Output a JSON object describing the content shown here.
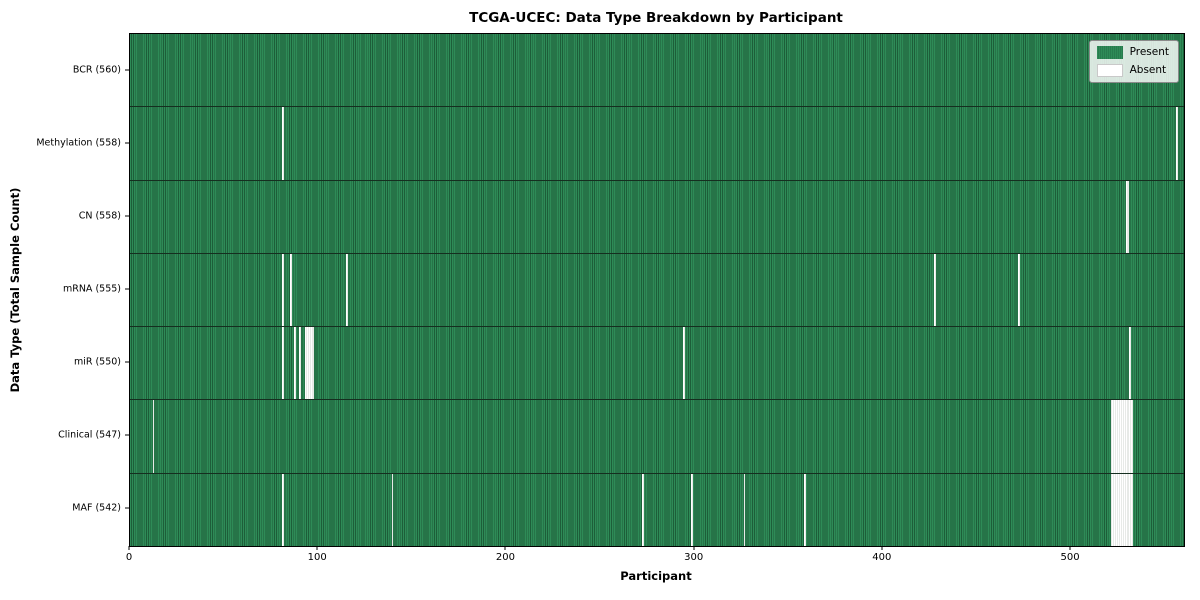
{
  "chart_data": {
    "type": "heatmap",
    "title": "TCGA-UCEC: Data Type Breakdown by Participant",
    "xlabel": "Participant",
    "ylabel": "Data Type (Total Sample Count)",
    "x_range": [
      0,
      560
    ],
    "x_ticks": [
      0,
      100,
      200,
      300,
      400,
      500
    ],
    "total_participants": 560,
    "legend": [
      "Present",
      "Absent"
    ],
    "colors": {
      "present": "#2e8b57",
      "present_edge": "#1d5e39",
      "absent": "#ffffff",
      "legend_face": "rgba(255,255,255,0.82)",
      "spine": "#000000"
    },
    "grid": false,
    "legend_position": "upper right",
    "rows": [
      {
        "data_type": "BCR",
        "label": "BCR (560)",
        "present_count": 560,
        "absent_participants": []
      },
      {
        "data_type": "Methylation",
        "label": "Methylation (558)",
        "present_count": 558,
        "absent_participants": [
          81,
          556
        ]
      },
      {
        "data_type": "CN",
        "label": "CN (558)",
        "present_count": 558,
        "absent_participants": [
          529,
          530
        ]
      },
      {
        "data_type": "mRNA",
        "label": "mRNA (555)",
        "present_count": 555,
        "absent_participants": [
          81,
          85,
          115,
          427,
          472
        ]
      },
      {
        "data_type": "miR",
        "label": "miR (550)",
        "present_count": 550,
        "absent_participants": [
          81,
          87,
          90,
          93,
          94,
          95,
          96,
          97,
          294,
          531
        ]
      },
      {
        "data_type": "Clinical",
        "label": "Clinical (547)",
        "present_count": 547,
        "absent_participants": [
          12,
          521,
          522,
          523,
          524,
          525,
          526,
          527,
          528,
          529,
          530,
          531,
          532
        ]
      },
      {
        "data_type": "MAF",
        "label": "MAF (542)",
        "present_count": 542,
        "absent_participants": [
          81,
          139,
          272,
          298,
          326,
          358,
          521,
          522,
          523,
          524,
          525,
          526,
          527,
          528,
          529,
          530,
          531,
          532
        ]
      }
    ]
  }
}
